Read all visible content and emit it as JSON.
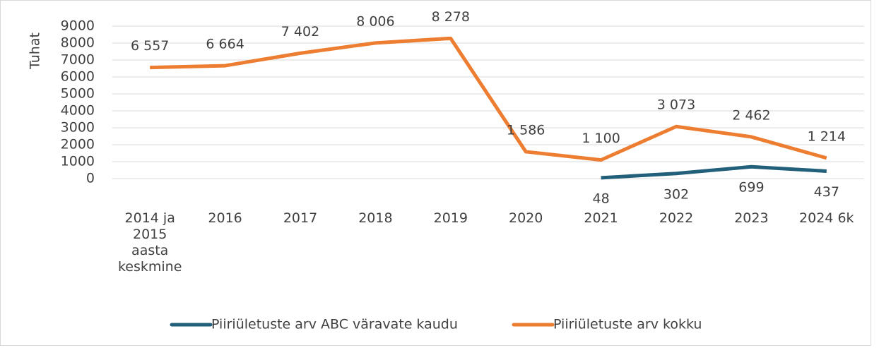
{
  "chart_data": {
    "type": "line",
    "y_axis_label": "Tuhat",
    "categories": [
      "2014 ja 2015 aasta keskmine",
      "2016",
      "2017",
      "2018",
      "2019",
      "2020",
      "2021",
      "2022",
      "2023",
      "2024 6k"
    ],
    "series": [
      {
        "name": "Piiriületuste arv ABC väravate kaudu",
        "color": "#215f7a",
        "values": [
          null,
          null,
          null,
          null,
          null,
          null,
          48,
          302,
          699,
          437
        ]
      },
      {
        "name": "Piiriületuste arv kokku",
        "color": "#ed7d31",
        "values": [
          6557,
          6664,
          7402,
          8006,
          8278,
          1586,
          1100,
          3073,
          2462,
          1214
        ],
        "value_labels": [
          "6 557",
          "6 664",
          "7 402",
          "8 006",
          "8 278",
          "1 586",
          "1 100",
          "3 073",
          "2 462",
          "1 214"
        ]
      }
    ],
    "ylim": [
      0,
      9000
    ],
    "yticks": [
      0,
      1000,
      2000,
      3000,
      4000,
      5000,
      6000,
      7000,
      8000,
      9000
    ],
    "grid": true,
    "legend": "bottom"
  }
}
